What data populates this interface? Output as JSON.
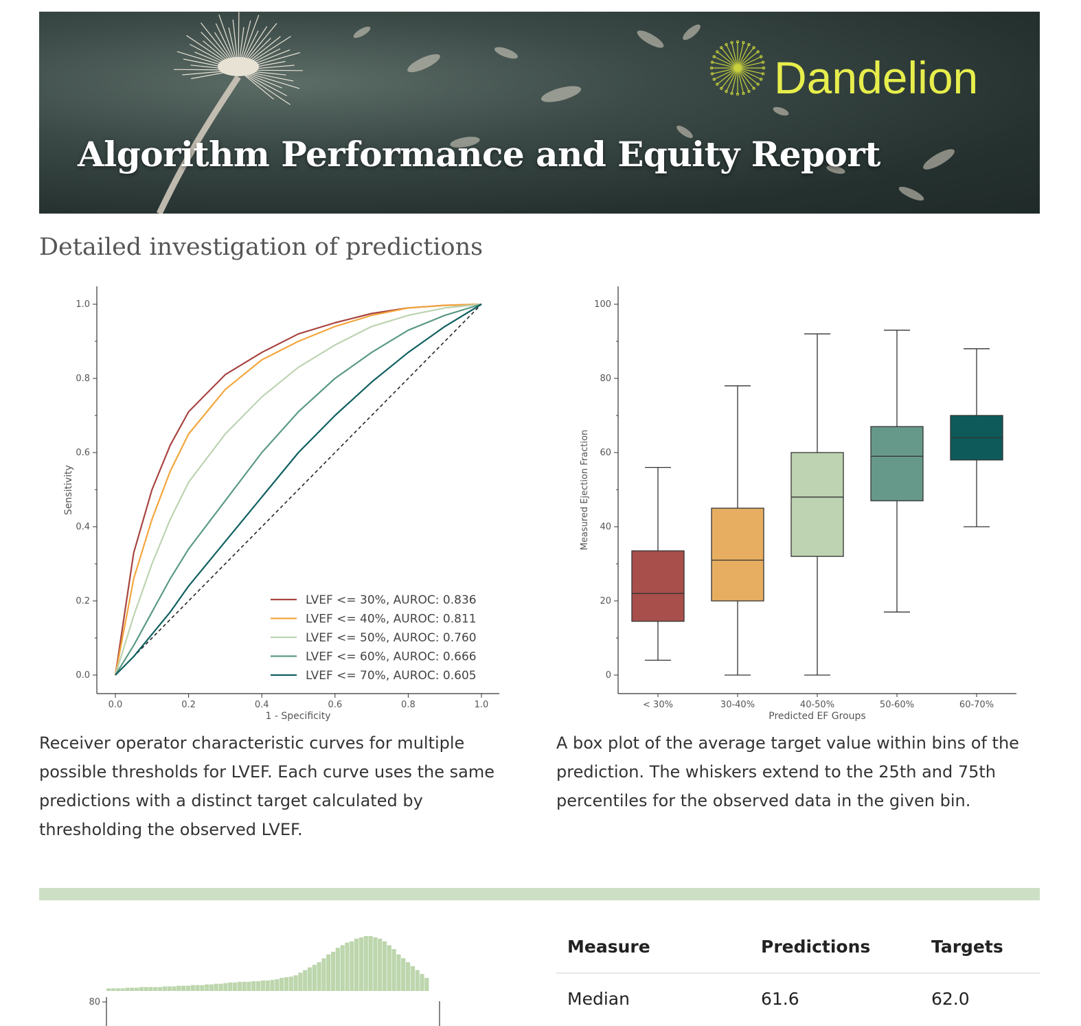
{
  "banner": {
    "title": "Algorithm Performance and Equity Report",
    "brand": "Dandelion",
    "icon": "dandelion-logo-icon",
    "colors": {
      "brand": "#e7ee4c",
      "background": "#2b3836"
    }
  },
  "section_title": "Detailed investigation of predictions",
  "roc_caption": "Receiver operator characteristic curves for multiple possible thresholds for LVEF. Each curve uses the same predictions with a distinct target calculated by thresholding the observed LVEF.",
  "box_caption": "A box plot of the average target value within bins of the prediction. The whiskers extend to the 25th and 75th percentiles for the observed data in the given bin.",
  "chart_data": [
    {
      "type": "line",
      "xlabel": "1 - Specificity",
      "ylabel": "Sensitivity",
      "xlim": [
        0,
        1
      ],
      "ylim": [
        0,
        1
      ],
      "xticks": [
        "0.0",
        "0.2",
        "0.4",
        "0.6",
        "0.8",
        "1.0"
      ],
      "yticks": [
        "0.0",
        "0.2",
        "0.4",
        "0.6",
        "0.8",
        "1.0"
      ],
      "legend_position": "bottom-right",
      "grid": false,
      "x": [
        0,
        0.05,
        0.1,
        0.15,
        0.2,
        0.3,
        0.4,
        0.5,
        0.6,
        0.7,
        0.8,
        0.9,
        1.0
      ],
      "series": [
        {
          "name": "LVEF <= 30%, AUROC: 0.836",
          "color": "#a84440",
          "values": [
            0,
            0.33,
            0.5,
            0.62,
            0.71,
            0.81,
            0.87,
            0.92,
            0.95,
            0.975,
            0.99,
            0.997,
            1.0
          ]
        },
        {
          "name": "LVEF <= 40%, AUROC: 0.811",
          "color": "#f2a63c",
          "values": [
            0,
            0.26,
            0.42,
            0.55,
            0.65,
            0.77,
            0.85,
            0.9,
            0.94,
            0.97,
            0.99,
            0.997,
            1.0
          ]
        },
        {
          "name": "LVEF <= 50%, AUROC: 0.760",
          "color": "#bdd3b1",
          "values": [
            0,
            0.16,
            0.3,
            0.42,
            0.52,
            0.65,
            0.75,
            0.83,
            0.89,
            0.94,
            0.97,
            0.99,
            1.0
          ]
        },
        {
          "name": "LVEF <= 60%, AUROC: 0.666",
          "color": "#5a9a84",
          "values": [
            0,
            0.08,
            0.17,
            0.26,
            0.34,
            0.47,
            0.6,
            0.71,
            0.8,
            0.87,
            0.93,
            0.97,
            1.0
          ]
        },
        {
          "name": "LVEF <= 70%, AUROC: 0.605",
          "color": "#0f5f60",
          "values": [
            0,
            0.05,
            0.11,
            0.17,
            0.24,
            0.36,
            0.48,
            0.6,
            0.7,
            0.79,
            0.87,
            0.94,
            1.0
          ]
        }
      ],
      "reference_line": {
        "x": [
          0,
          1
        ],
        "y": [
          0,
          1
        ],
        "style": "dashed"
      }
    },
    {
      "type": "box",
      "xlabel": "Predicted EF Groups",
      "ylabel": "Measured Ejection Fraction",
      "ylim": [
        -5,
        105
      ],
      "yticks": [
        "0",
        "20",
        "40",
        "60",
        "80",
        "100"
      ],
      "categories": [
        "< 30%",
        "30-40%",
        "40-50%",
        "50-60%",
        "60-70%"
      ],
      "boxes": [
        {
          "min": 4,
          "q1": 14.5,
          "median": 22,
          "q3": 33.5,
          "max": 56,
          "color": "#a84f4c"
        },
        {
          "min": 0,
          "q1": 20,
          "median": 31,
          "q3": 45,
          "max": 78,
          "color": "#e7ae62"
        },
        {
          "min": 0,
          "q1": 32,
          "median": 48,
          "q3": 60,
          "max": 92,
          "color": "#bdd3b1"
        },
        {
          "min": 17,
          "q1": 47,
          "median": 59,
          "q3": 67,
          "max": 93,
          "color": "#67998a"
        },
        {
          "min": 40,
          "q1": 58,
          "median": 64,
          "q3": 70,
          "max": 88,
          "color": "#0e5a5a"
        }
      ]
    },
    {
      "type": "bar",
      "ytick_visible": "80",
      "color": "#bdd6ad",
      "values": [
        2,
        2,
        2,
        2,
        2.5,
        2.5,
        2.5,
        3,
        3,
        3,
        3,
        3,
        3.5,
        3.5,
        3.5,
        4,
        4,
        4,
        4.5,
        4.5,
        4.5,
        5,
        5,
        5.5,
        5.5,
        6,
        6.5,
        6.5,
        7,
        7,
        7,
        7.5,
        7.5,
        8,
        8,
        8.5,
        9,
        10,
        10.5,
        11,
        12,
        14,
        16,
        18,
        20,
        22,
        25,
        28,
        30,
        33,
        35,
        37,
        38,
        40,
        41,
        42,
        42,
        41,
        40,
        38,
        35,
        32,
        28,
        25,
        22,
        19,
        16,
        13,
        10
      ]
    }
  ],
  "stats_table": {
    "headers": [
      "Measure",
      "Predictions",
      "Targets"
    ],
    "rows": [
      {
        "measure": "Median",
        "predictions": "61.6",
        "targets": "62.0"
      }
    ]
  }
}
